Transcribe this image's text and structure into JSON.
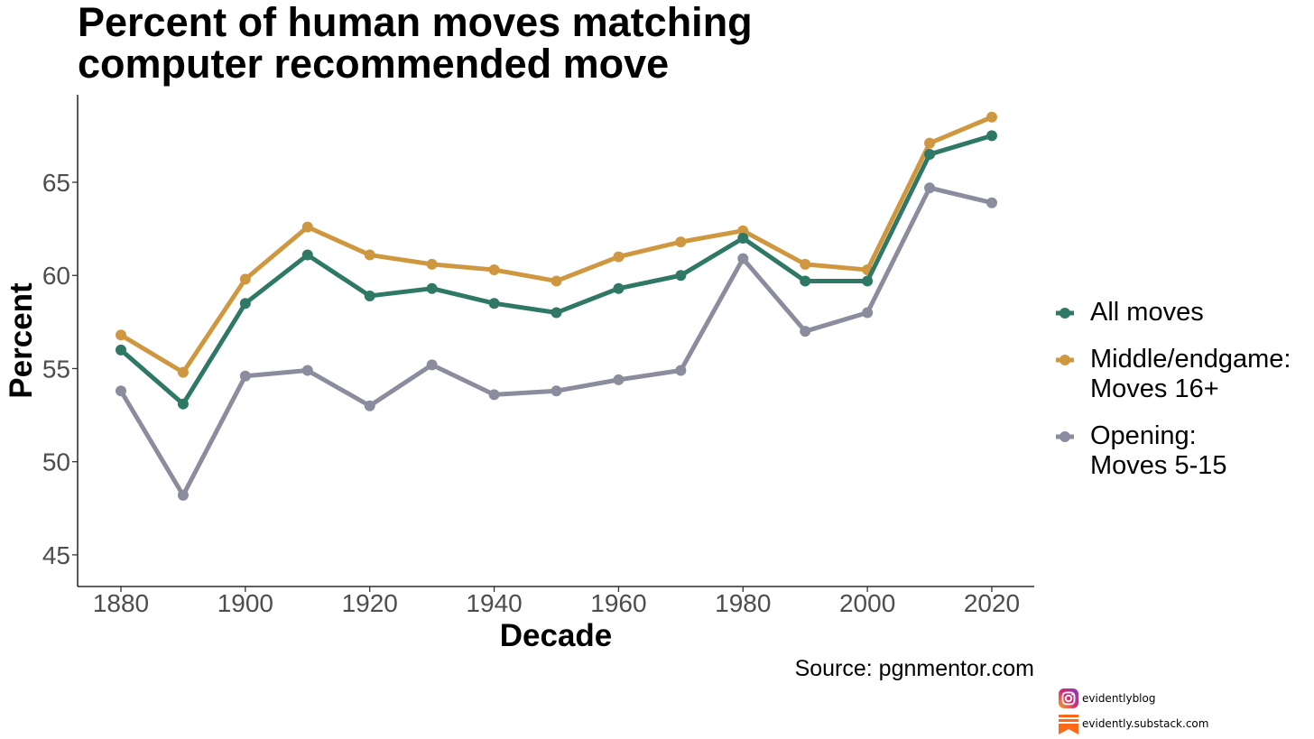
{
  "title_lines": [
    "Percent of human moves matching",
    "computer recommended move"
  ],
  "source": "Source: pgnmentor.com",
  "watermarks": {
    "instagram": "evidentlyblog",
    "substack": "evidently.substack.com"
  },
  "colors": {
    "all_moves": "#2f7866",
    "middle_endgame": "#cf9840",
    "opening": "#8b8c9e",
    "axis": "#000000",
    "tick_text": "#4d4d4d"
  },
  "chart_data": {
    "type": "line",
    "xlabel": "Decade",
    "ylabel": "Percent",
    "x": [
      1880,
      1890,
      1900,
      1910,
      1920,
      1930,
      1940,
      1950,
      1960,
      1970,
      1980,
      1990,
      2000,
      2010,
      2020
    ],
    "xticks": [
      "1880",
      "1900",
      "1920",
      "1940",
      "1960",
      "1980",
      "2000",
      "2020"
    ],
    "yticks": [
      "45",
      "50",
      "55",
      "60",
      "65"
    ],
    "xlim": [
      1880,
      2020
    ],
    "ylim": [
      43.3,
      69.7
    ],
    "grid": false,
    "legend_position": "right",
    "series": [
      {
        "key": "middle_endgame",
        "name": "Middle/endgame: Moves 16+",
        "name_lines": [
          "Middle/endgame:",
          "Moves 16+"
        ],
        "values": [
          56.8,
          54.8,
          59.8,
          62.6,
          61.1,
          60.6,
          60.3,
          59.7,
          61.0,
          61.8,
          62.4,
          60.6,
          60.3,
          67.1,
          68.5
        ]
      },
      {
        "key": "all_moves",
        "name": "All moves",
        "name_lines": [
          "All moves"
        ],
        "values": [
          56.0,
          53.1,
          58.5,
          61.1,
          58.9,
          59.3,
          58.5,
          58.0,
          59.3,
          60.0,
          62.0,
          59.7,
          59.7,
          66.5,
          67.5
        ]
      },
      {
        "key": "opening",
        "name": "Opening: Moves 5-15",
        "name_lines": [
          "Opening:",
          "Moves 5-15"
        ],
        "values": [
          53.8,
          48.2,
          54.6,
          54.9,
          53.0,
          55.2,
          53.6,
          53.8,
          54.4,
          54.9,
          60.9,
          57.0,
          58.0,
          64.7,
          63.9
        ]
      }
    ],
    "legend_order": [
      "all_moves",
      "middle_endgame",
      "opening"
    ]
  }
}
